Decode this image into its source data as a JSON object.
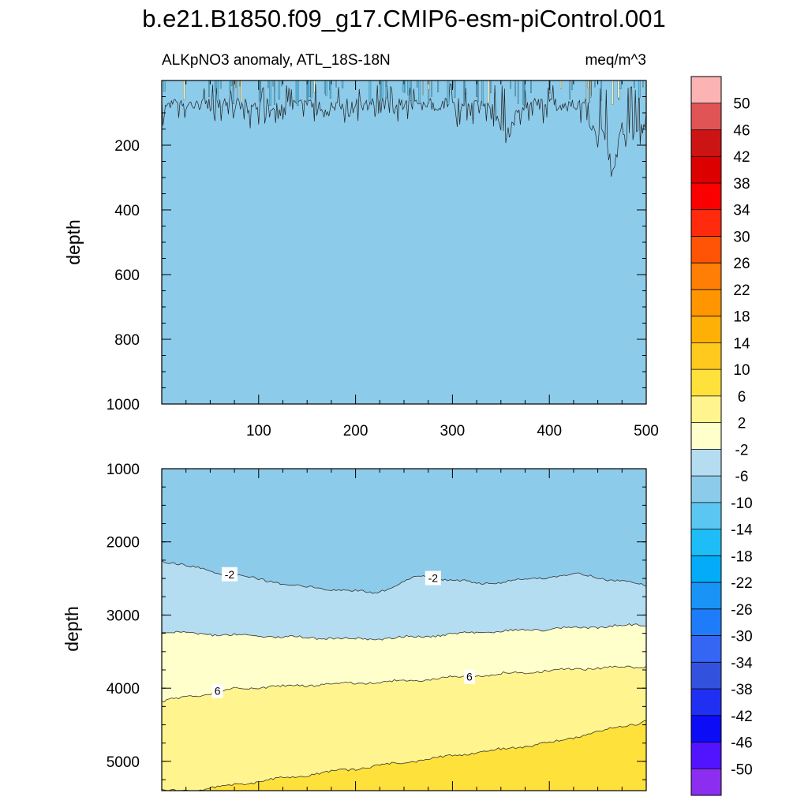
{
  "chart_data": {
    "type": "contour",
    "title": "b.e21.B1850.f09_g17.CMIP6-esm-piControl.001",
    "left_string": "ALKpNO3 anomaly, ATL_18S-18N",
    "right_string": "meq/m^3",
    "x": {
      "range": [
        0,
        500
      ],
      "ticks": [
        100,
        200,
        300,
        400,
        500
      ]
    },
    "panels": [
      {
        "name": "upper",
        "ylabel": "depth",
        "ylim": [
          0,
          1000
        ],
        "yticks": [
          200,
          400,
          600,
          800,
          1000
        ],
        "background_level": "-6 to -2",
        "contour_labels": [],
        "notes": "noisy negative anomalies (-10 to -2) near the surface, mostly above 200 m; deeper to 240 m near x=355 and 280 m near x=465"
      },
      {
        "name": "lower",
        "ylabel": "depth",
        "ylim": [
          1000,
          5400
        ],
        "yticks": [
          1000,
          2000,
          3000,
          4000,
          5000
        ],
        "layers": [
          {
            "range": "-6 to -2",
            "from_depth_at_x": [
              [
                0,
                1000
              ],
              [
                500,
                1000
              ]
            ]
          },
          {
            "range": "-2 to 2",
            "boundary_depth_at_x": [
              [
                0,
                2250
              ],
              [
                50,
                2400
              ],
              [
                150,
                2620
              ],
              [
                220,
                2700
              ],
              [
                265,
                2470
              ],
              [
                330,
                2570
              ],
              [
                430,
                2440
              ],
              [
                500,
                2600
              ]
            ]
          },
          {
            "range": "2 to 6",
            "boundary_depth_at_x": [
              [
                0,
                3230
              ],
              [
                100,
                3290
              ],
              [
                220,
                3330
              ],
              [
                350,
                3220
              ],
              [
                500,
                3130
              ]
            ]
          },
          {
            "range": "6 to 10",
            "boundary_depth_at_x": [
              [
                0,
                4180
              ],
              [
                80,
                4000
              ],
              [
                250,
                3900
              ],
              [
                420,
                3740
              ],
              [
                500,
                3700
              ]
            ]
          },
          {
            "range": "10 to 14",
            "boundary_depth_at_x": [
              [
                30,
                5400
              ],
              [
                200,
                5100
              ],
              [
                400,
                4750
              ],
              [
                500,
                4450
              ]
            ]
          }
        ],
        "contour_labels": [
          {
            "text": "-2",
            "x": 70
          },
          {
            "text": "-2",
            "x": 280
          },
          {
            "text": "6",
            "x": 58
          },
          {
            "text": "6",
            "x": 318
          }
        ]
      }
    ],
    "colorbar": {
      "labels": [
        "50",
        "46",
        "42",
        "38",
        "34",
        "30",
        "26",
        "22",
        "18",
        "14",
        "10",
        "6",
        "2",
        "-2",
        "-6",
        "-10",
        "-14",
        "-18",
        "-22",
        "-26",
        "-30",
        "-34",
        "-38",
        "-42",
        "-46",
        "-50"
      ],
      "colors": [
        "#fbb3b4",
        "#e15456",
        "#cd1414",
        "#dd0000",
        "#fa0000",
        "#ff2b0c",
        "#ff5305",
        "#ff7e05",
        "#ff9600",
        "#ffb006",
        "#ffc91e",
        "#ffe13b",
        "#fff48d",
        "#ffffcb",
        "#b4ddf1",
        "#8dcbea",
        "#5bc6f2",
        "#1fbdf8",
        "#04acf8",
        "#1a93f6",
        "#1e7cf8",
        "#3565f3",
        "#3252de",
        "#2030f2",
        "#0c0cf6",
        "#5213ff",
        "#8b2eef"
      ]
    }
  }
}
